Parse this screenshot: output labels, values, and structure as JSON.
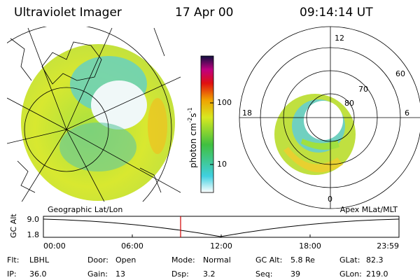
{
  "header": {
    "title": "Ultraviolet Imager",
    "date": "17 Apr 00",
    "time": "09:14:14 UT"
  },
  "colorbar": {
    "unit_parts": [
      "photon cm",
      "-2",
      "s",
      "-1"
    ],
    "ticks": [
      "100",
      "10"
    ]
  },
  "polar": {
    "hour_labels": [
      "12",
      "18",
      "6",
      "0"
    ],
    "lat_labels": [
      "60",
      "70",
      "80"
    ]
  },
  "panels": {
    "left": "Geographic Lat/Lon",
    "right": "Apex MLat/MLT"
  },
  "altitude_plot": {
    "axis_label": "GC Alt",
    "yticks": [
      "9.0",
      "1.8"
    ],
    "xticks": [
      "00:00",
      "06:00",
      "12:00",
      "18:00",
      "23:59"
    ]
  },
  "info": [
    [
      [
        "Flt:",
        "LBHL"
      ],
      [
        "Door:",
        "Open"
      ],
      [
        "Mode:",
        "Normal"
      ],
      [
        "GC Alt:",
        "5.8 Re"
      ],
      [
        "GLat:",
        "82.3"
      ]
    ],
    [
      [
        "IP:",
        "36.0"
      ],
      [
        "Gain:",
        "13"
      ],
      [
        "Dsp:",
        "3.2"
      ],
      [
        "Seq:",
        "39"
      ],
      [
        "GLon:",
        "219.0"
      ]
    ]
  ]
}
